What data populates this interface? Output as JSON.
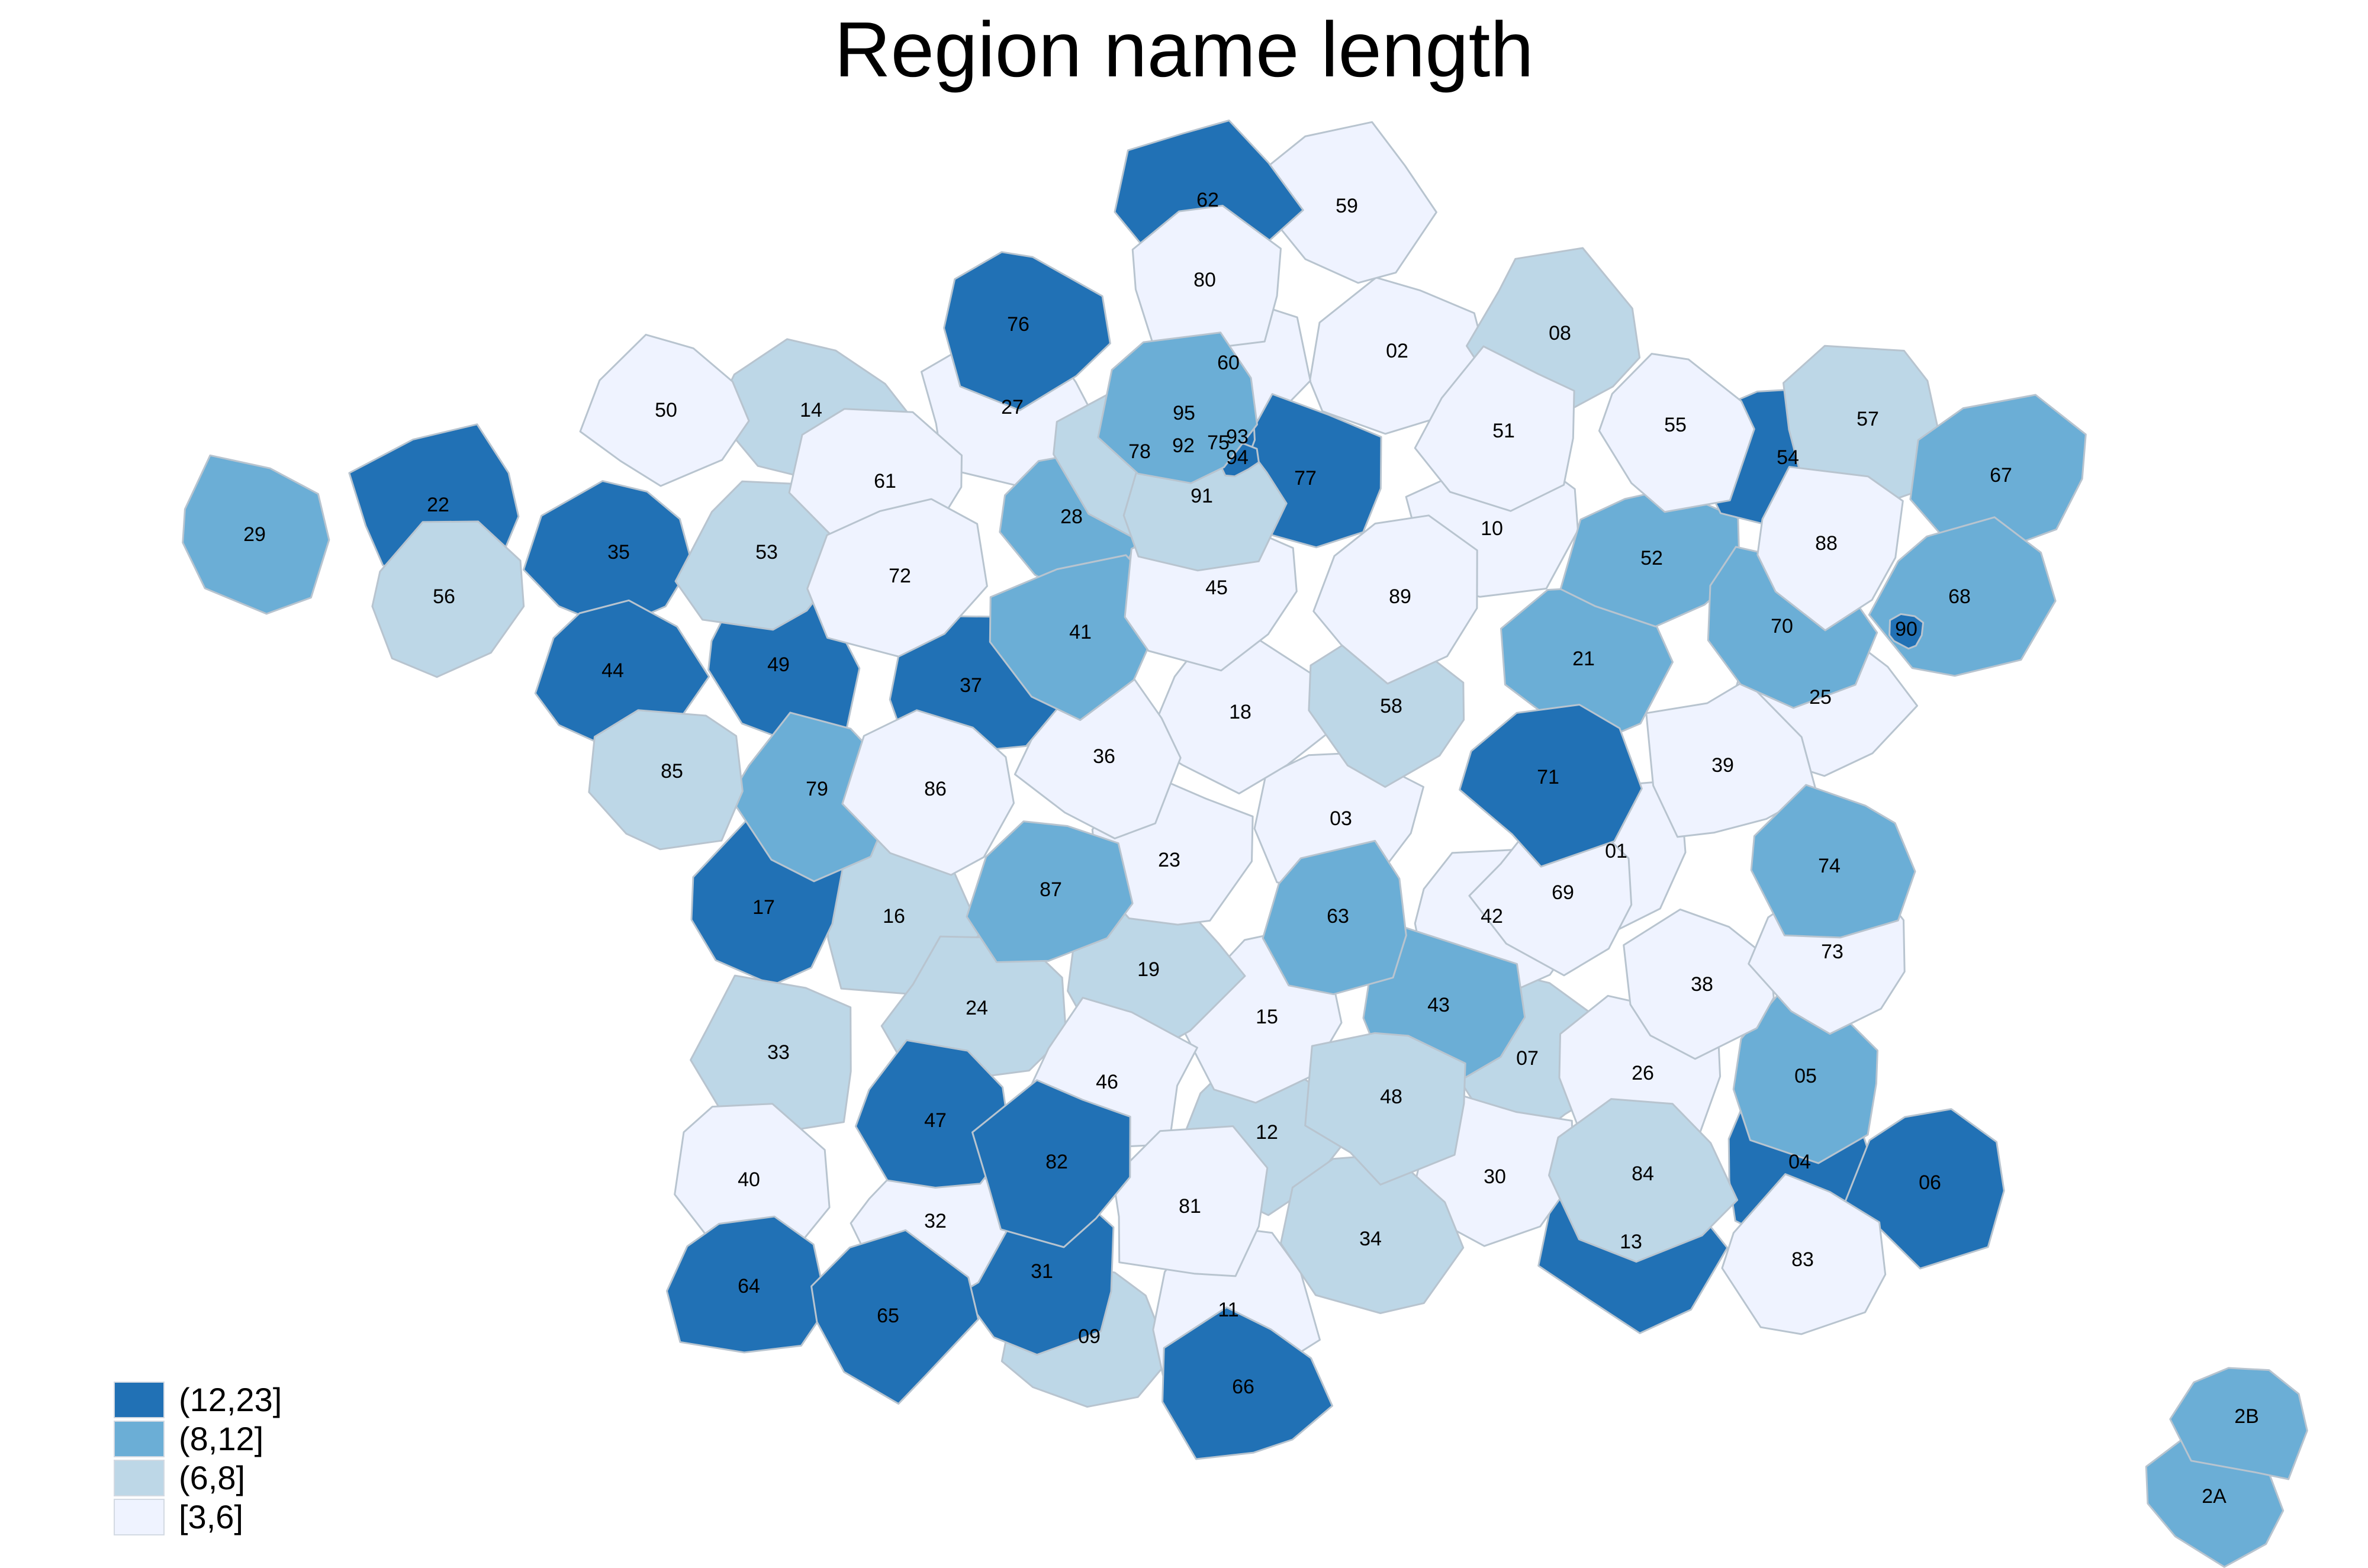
{
  "title": "Region name length",
  "colors": {
    "class_4": "#2171b5",
    "class_3": "#6baed6",
    "class_2": "#bdd7e7",
    "class_1": "#eff3ff",
    "border": "#b8c4cf"
  },
  "legend": [
    {
      "label": "(12,23]",
      "class": "class_4"
    },
    {
      "label": "(8,12]",
      "class": "class_3"
    },
    {
      "label": "(6,8]",
      "class": "class_2"
    },
    {
      "label": "[3,6]",
      "class": "class_1"
    }
  ],
  "departments": [
    {
      "code": "01",
      "class": "class_1"
    },
    {
      "code": "02",
      "class": "class_1"
    },
    {
      "code": "03",
      "class": "class_1"
    },
    {
      "code": "04",
      "class": "class_4"
    },
    {
      "code": "05",
      "class": "class_3"
    },
    {
      "code": "06",
      "class": "class_4"
    },
    {
      "code": "07",
      "class": "class_2"
    },
    {
      "code": "08",
      "class": "class_2"
    },
    {
      "code": "09",
      "class": "class_2"
    },
    {
      "code": "10",
      "class": "class_1"
    },
    {
      "code": "11",
      "class": "class_1"
    },
    {
      "code": "12",
      "class": "class_2"
    },
    {
      "code": "13",
      "class": "class_4"
    },
    {
      "code": "14",
      "class": "class_2"
    },
    {
      "code": "15",
      "class": "class_1"
    },
    {
      "code": "16",
      "class": "class_2"
    },
    {
      "code": "17",
      "class": "class_4"
    },
    {
      "code": "18",
      "class": "class_1"
    },
    {
      "code": "19",
      "class": "class_2"
    },
    {
      "code": "21",
      "class": "class_3"
    },
    {
      "code": "22",
      "class": "class_4"
    },
    {
      "code": "23",
      "class": "class_1"
    },
    {
      "code": "24",
      "class": "class_2"
    },
    {
      "code": "25",
      "class": "class_1"
    },
    {
      "code": "26",
      "class": "class_1"
    },
    {
      "code": "27",
      "class": "class_1"
    },
    {
      "code": "28",
      "class": "class_3"
    },
    {
      "code": "29",
      "class": "class_3"
    },
    {
      "code": "30",
      "class": "class_1"
    },
    {
      "code": "31",
      "class": "class_4"
    },
    {
      "code": "32",
      "class": "class_1"
    },
    {
      "code": "33",
      "class": "class_2"
    },
    {
      "code": "34",
      "class": "class_2"
    },
    {
      "code": "35",
      "class": "class_4"
    },
    {
      "code": "36",
      "class": "class_1"
    },
    {
      "code": "37",
      "class": "class_4"
    },
    {
      "code": "38",
      "class": "class_1"
    },
    {
      "code": "39",
      "class": "class_1"
    },
    {
      "code": "40",
      "class": "class_1"
    },
    {
      "code": "41",
      "class": "class_3"
    },
    {
      "code": "42",
      "class": "class_1"
    },
    {
      "code": "43",
      "class": "class_3"
    },
    {
      "code": "44",
      "class": "class_4"
    },
    {
      "code": "45",
      "class": "class_1"
    },
    {
      "code": "46",
      "class": "class_1"
    },
    {
      "code": "47",
      "class": "class_4"
    },
    {
      "code": "48",
      "class": "class_2"
    },
    {
      "code": "49",
      "class": "class_4"
    },
    {
      "code": "50",
      "class": "class_1"
    },
    {
      "code": "51",
      "class": "class_1"
    },
    {
      "code": "52",
      "class": "class_3"
    },
    {
      "code": "53",
      "class": "class_2"
    },
    {
      "code": "54",
      "class": "class_4"
    },
    {
      "code": "55",
      "class": "class_1"
    },
    {
      "code": "56",
      "class": "class_2"
    },
    {
      "code": "57",
      "class": "class_2"
    },
    {
      "code": "58",
      "class": "class_2"
    },
    {
      "code": "59",
      "class": "class_1"
    },
    {
      "code": "60",
      "class": "class_1"
    },
    {
      "code": "61",
      "class": "class_1"
    },
    {
      "code": "62",
      "class": "class_4"
    },
    {
      "code": "63",
      "class": "class_3"
    },
    {
      "code": "64",
      "class": "class_4"
    },
    {
      "code": "65",
      "class": "class_4"
    },
    {
      "code": "66",
      "class": "class_4"
    },
    {
      "code": "67",
      "class": "class_3"
    },
    {
      "code": "68",
      "class": "class_3"
    },
    {
      "code": "69",
      "class": "class_1"
    },
    {
      "code": "70",
      "class": "class_3"
    },
    {
      "code": "71",
      "class": "class_4"
    },
    {
      "code": "72",
      "class": "class_1"
    },
    {
      "code": "73",
      "class": "class_1"
    },
    {
      "code": "74",
      "class": "class_3"
    },
    {
      "code": "75",
      "class": "class_1"
    },
    {
      "code": "76",
      "class": "class_4"
    },
    {
      "code": "77",
      "class": "class_4"
    },
    {
      "code": "78",
      "class": "class_2"
    },
    {
      "code": "79",
      "class": "class_3"
    },
    {
      "code": "80",
      "class": "class_1"
    },
    {
      "code": "81",
      "class": "class_1"
    },
    {
      "code": "82",
      "class": "class_4"
    },
    {
      "code": "83",
      "class": "class_1"
    },
    {
      "code": "84",
      "class": "class_2"
    },
    {
      "code": "85",
      "class": "class_2"
    },
    {
      "code": "86",
      "class": "class_1"
    },
    {
      "code": "87",
      "class": "class_3"
    },
    {
      "code": "88",
      "class": "class_1"
    },
    {
      "code": "89",
      "class": "class_1"
    },
    {
      "code": "90",
      "class": "class_4"
    },
    {
      "code": "91",
      "class": "class_2"
    },
    {
      "code": "92",
      "class": "class_4"
    },
    {
      "code": "93",
      "class": "class_4"
    },
    {
      "code": "94",
      "class": "class_4"
    },
    {
      "code": "95",
      "class": "class_3"
    },
    {
      "code": "2A",
      "class": "class_3"
    },
    {
      "code": "2B",
      "class": "class_3"
    }
  ]
}
